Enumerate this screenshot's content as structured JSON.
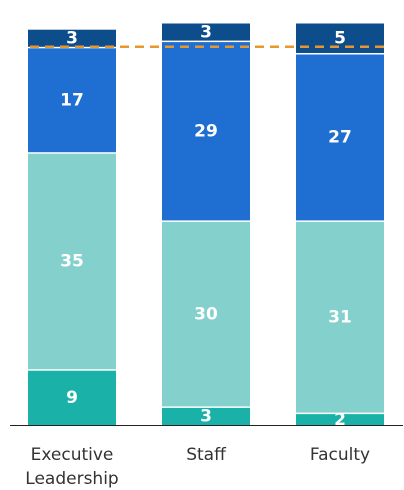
{
  "chart_data": {
    "type": "bar",
    "stacked": true,
    "categories": [
      "Executive Leadership",
      "Staff",
      "Faculty"
    ],
    "category_lines": [
      [
        "Executive",
        "Leadership"
      ],
      [
        "Staff"
      ],
      [
        "Faculty"
      ]
    ],
    "series": [
      {
        "values": [
          9,
          3,
          2
        ],
        "color": "#1ab2a8"
      },
      {
        "values": [
          35,
          30,
          31
        ],
        "color": "#84d0cd"
      },
      {
        "values": [
          17,
          29,
          27
        ],
        "color": "#1f6ed1"
      },
      {
        "values": [
          3,
          3,
          5
        ],
        "color": "#0e4d8c"
      }
    ],
    "reference_line": {
      "value": 61,
      "color": "#e8962e",
      "style": "dashed"
    },
    "ylim": [
      0,
      65
    ],
    "title": "",
    "xlabel": "",
    "ylabel": "",
    "grid": false,
    "legend": "none"
  }
}
